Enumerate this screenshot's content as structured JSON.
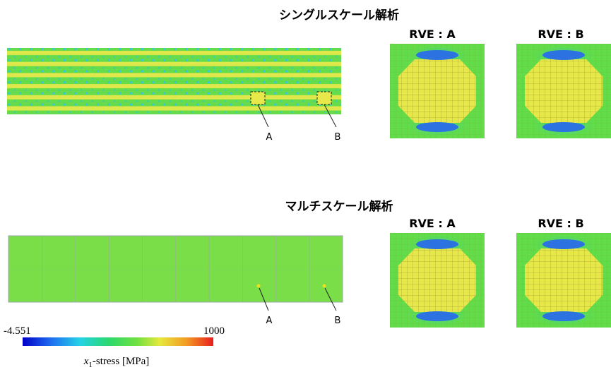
{
  "single_scale": {
    "title": "シングルスケール解析",
    "rve_labels": [
      "RVE : A",
      "RVE : B"
    ],
    "point_labels": [
      "A",
      "B"
    ]
  },
  "multi_scale": {
    "title": "マルチスケール解析",
    "rve_labels": [
      "RVE : A",
      "RVE : B"
    ],
    "point_labels": [
      "A",
      "B"
    ]
  },
  "colorbar": {
    "min": -4.551,
    "max": 1000,
    "label_var": "x",
    "label_sub": "1",
    "label_rest": "-stress [MPa]"
  }
}
